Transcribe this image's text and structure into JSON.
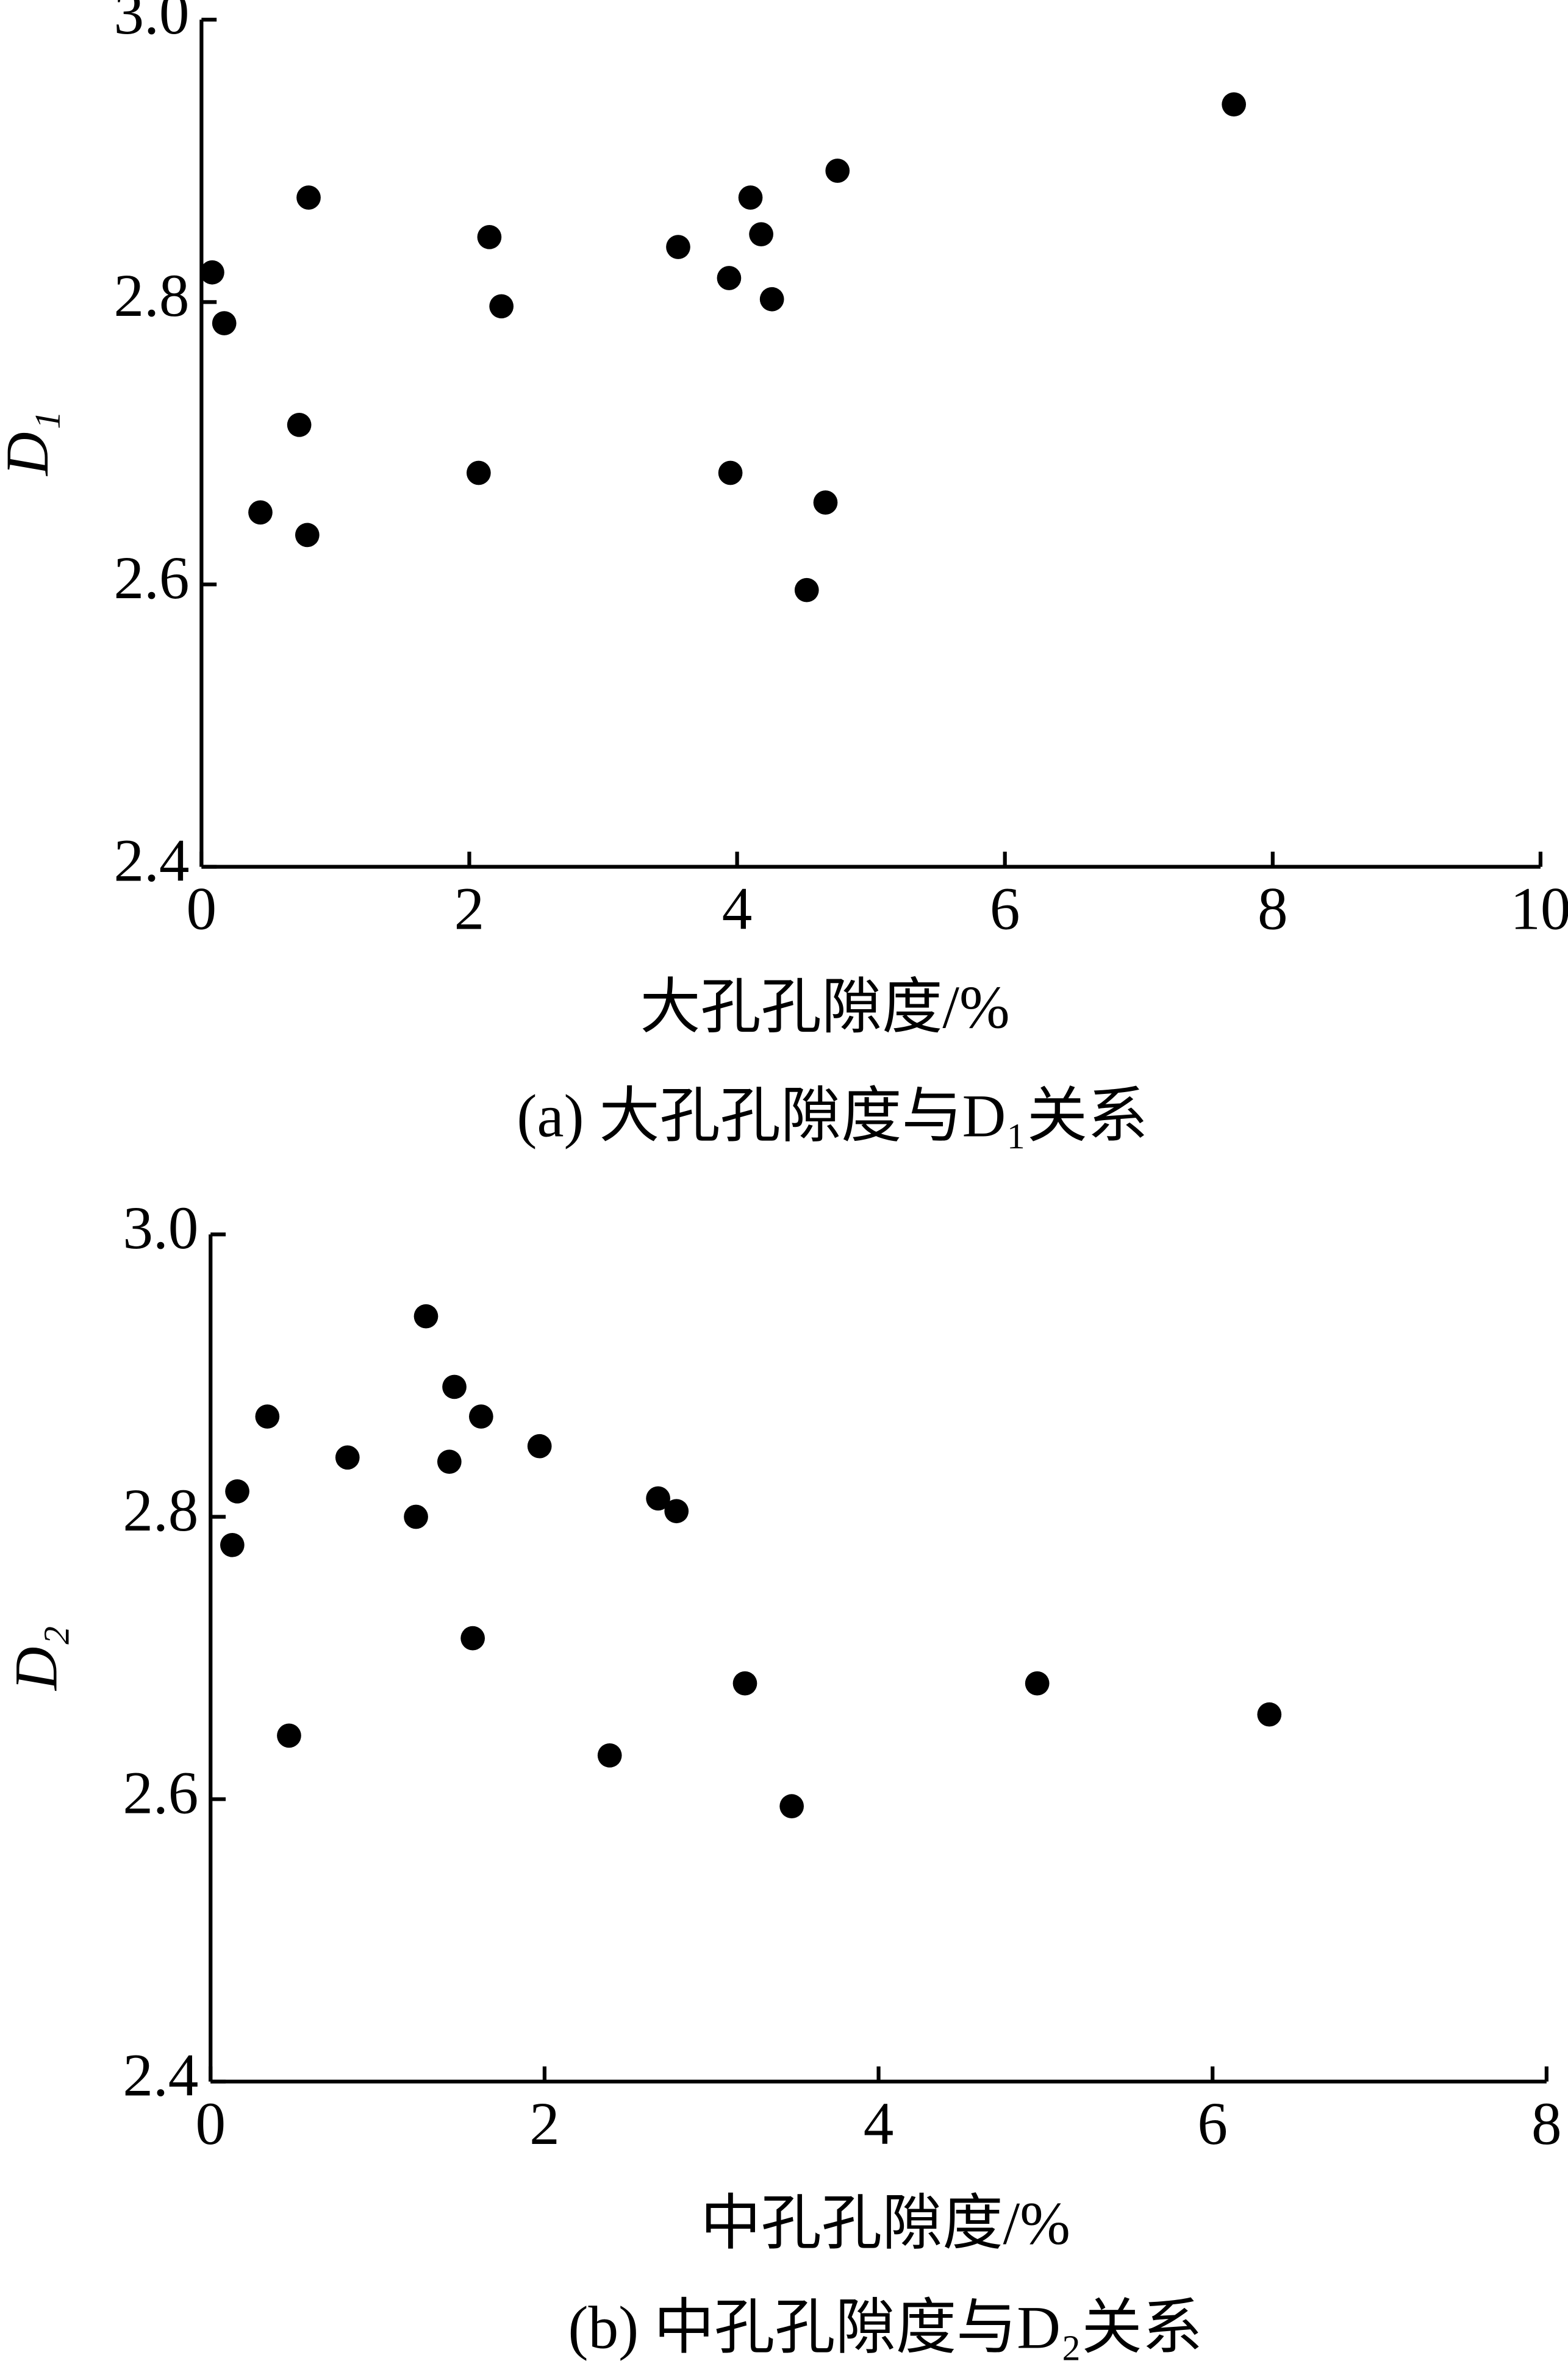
{
  "chart_data": [
    {
      "type": "scatter",
      "x_label": "大孔孔隙度/%",
      "y_label": "D₁",
      "caption": "(a)  大孔孔隙度与D₁关系",
      "color": "#000000",
      "xlim": [
        0,
        10
      ],
      "xticks": [
        0,
        2,
        4,
        6,
        8,
        10
      ],
      "ylim": [
        2.4,
        3.0
      ],
      "yticks": [
        2.4,
        2.6,
        2.8,
        {
          "value": 3,
          "label": "3.0"
        }
      ],
      "x": [
        0.08,
        0.17,
        0.44,
        0.73,
        0.79,
        0.8,
        2.07,
        2.15,
        2.24,
        3.56,
        3.94,
        3.95,
        4.1,
        4.18,
        4.26,
        4.52,
        4.66,
        4.75,
        7.71
      ],
      "values": [
        2.821,
        2.785,
        2.651,
        2.713,
        2.635,
        2.874,
        2.679,
        2.846,
        2.797,
        2.839,
        2.817,
        2.679,
        2.874,
        2.848,
        2.802,
        2.596,
        2.658,
        2.893,
        2.94
      ]
    },
    {
      "type": "scatter",
      "x_label": "中孔孔隙度/%",
      "y_label": "D₂",
      "caption": "(b)  中孔孔隙度与D₂关系",
      "color": "#000000",
      "xlim": [
        0,
        8
      ],
      "xticks": [
        0,
        2,
        4,
        6,
        8
      ],
      "ylim": [
        2.4,
        3.0
      ],
      "yticks": [
        2.4,
        2.6,
        2.8,
        {
          "value": 3,
          "label": "3.0"
        }
      ],
      "x": [
        0.13,
        0.16,
        0.34,
        0.47,
        0.82,
        1.23,
        1.29,
        1.43,
        1.46,
        1.57,
        1.62,
        1.97,
        2.39,
        2.68,
        2.79,
        3.2,
        3.48,
        4.95,
        6.34
      ],
      "values": [
        2.78,
        2.818,
        2.871,
        2.645,
        2.842,
        2.8,
        2.942,
        2.839,
        2.892,
        2.714,
        2.871,
        2.85,
        2.631,
        2.813,
        2.804,
        2.682,
        2.595,
        2.682,
        2.66
      ]
    }
  ]
}
